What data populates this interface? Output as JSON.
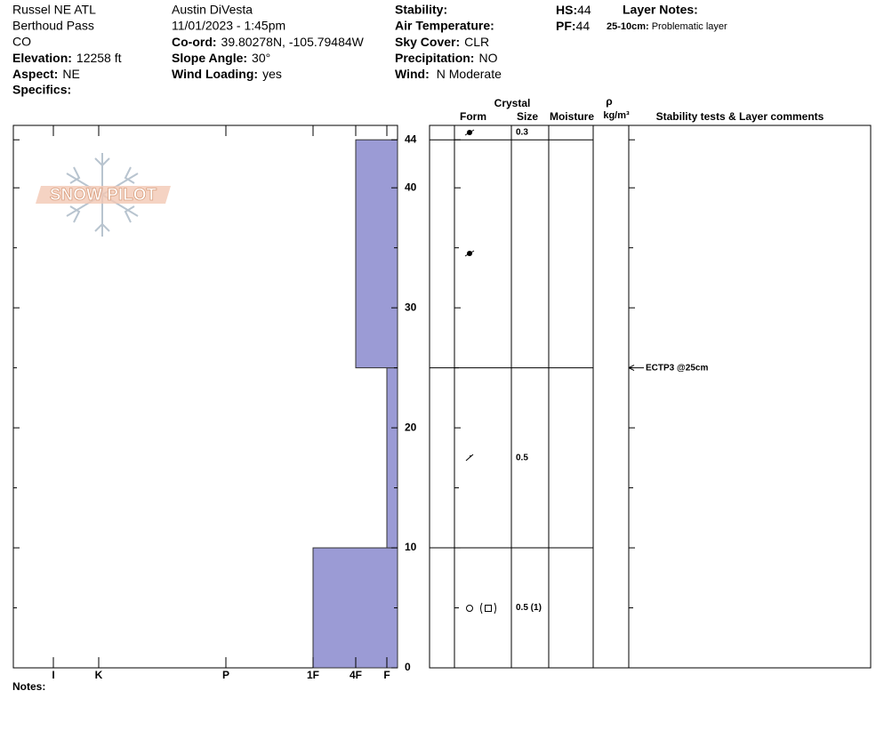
{
  "header": {
    "location": "Russel NE ATL",
    "area": "Berthoud Pass",
    "state": "CO",
    "elevation": {
      "label": "Elevation:",
      "value": "12258 ft"
    },
    "aspect": {
      "label": "Aspect:",
      "value": "NE"
    },
    "specifics": {
      "label": "Specifics:"
    },
    "observer": "Austin DiVesta",
    "datetime": "11/01/2023 - 1:45pm",
    "coord": {
      "label": "Co-ord:",
      "value": "39.80278N, -105.79484W"
    },
    "slope": {
      "label": "Slope Angle:",
      "value": "30°"
    },
    "wind_loading": {
      "label": "Wind Loading:",
      "value": "yes"
    },
    "stability": {
      "label": "Stability:"
    },
    "air_temp": {
      "label": "Air Temperature:"
    },
    "sky_cover": {
      "label": "Sky Cover:",
      "value": "CLR"
    },
    "precipitation": {
      "label": "Precipitation:",
      "value": "NO"
    },
    "wind": {
      "label": "Wind:",
      "value": "N Moderate"
    },
    "hs": {
      "label": "HS:",
      "value": "44"
    },
    "pf": {
      "label": "PF:",
      "value": "44"
    },
    "layer_notes": {
      "label": "Layer Notes:",
      "items": [
        {
          "range": "25-10cm:",
          "text": "Problematic layer"
        }
      ]
    }
  },
  "chart_data": {
    "type": "snow-profile",
    "logo": "SNOW PILOT",
    "ylim": [
      0,
      45.2
    ],
    "yticks": [
      0,
      10,
      20,
      30,
      40,
      44
    ],
    "minor_yticks": [
      5,
      15,
      25,
      35
    ],
    "hardness_ticks": [
      "I",
      "K",
      "P",
      "1F",
      "4F",
      "F"
    ],
    "bar_color": "#9b9bd5",
    "columns": {
      "crystal": "Crystal",
      "form": "Form",
      "size": "Size",
      "moisture": "Moisture",
      "density_symbol": "ρ",
      "density_unit": "kg/m³",
      "comments": "Stability tests & Layer comments"
    },
    "surface_size": "0.3",
    "layers": [
      {
        "bottom": 0,
        "top": 10,
        "hardness": "1F",
        "size": "0.5 (1)"
      },
      {
        "bottom": 10,
        "top": 25,
        "hardness": "F",
        "size": "0.5"
      },
      {
        "bottom": 25,
        "top": 44,
        "hardness": "4F"
      }
    ],
    "tests": [
      {
        "depth": 25,
        "label": "ECTP3 @25cm"
      }
    ],
    "notes_label": "Notes:"
  }
}
